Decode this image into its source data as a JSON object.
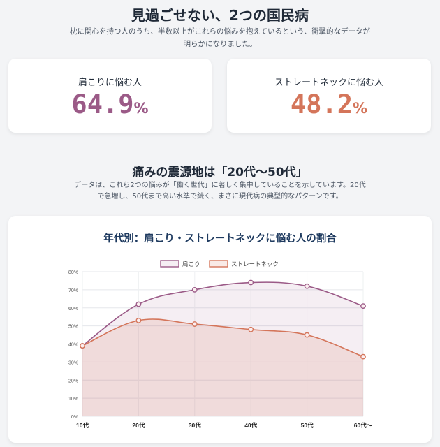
{
  "header": {
    "title": "見過ごせない、2つの国民病",
    "subtitle": "枕に関心を持つ人のうち、半数以上がこれらの悩みを抱えているという、衝撃的なデータが明らかになりました。"
  },
  "stats": [
    {
      "label": "肩こりに悩む人",
      "value": "64.9",
      "unit": "%",
      "color": "#9b5a87"
    },
    {
      "label": "ストレートネックに悩む人",
      "value": "48.2",
      "unit": "%",
      "color": "#d4755a"
    }
  ],
  "section": {
    "title": "痛みの震源地は「20代〜50代」",
    "description": "データは、これら2つの悩みが「働く世代」に著しく集中していることを示しています。20代で急増し、50代まで高い水準で続く、まさに現代病の典型的なパターンです。"
  },
  "chart_data": {
    "type": "line",
    "title": "年代別：肩こり・ストレートネックに悩む人の割合",
    "categories": [
      "10代",
      "20代",
      "30代",
      "40代",
      "50代",
      "60代〜"
    ],
    "series": [
      {
        "name": "肩こり",
        "values": [
          39,
          62,
          70,
          74,
          72,
          61
        ],
        "color": "#9b5a87",
        "fill": "rgba(155,90,135,0.10)"
      },
      {
        "name": "ストレートネック",
        "values": [
          39,
          53,
          51,
          48,
          45,
          33
        ],
        "color": "#d4755a",
        "fill": "rgba(212,117,90,0.15)"
      }
    ],
    "ylim": [
      0,
      80
    ],
    "yticks": [
      "0%",
      "10%",
      "20%",
      "30%",
      "40%",
      "50%",
      "60%",
      "70%",
      "80%"
    ],
    "legend": "top",
    "grid": true,
    "area_fill": true
  }
}
